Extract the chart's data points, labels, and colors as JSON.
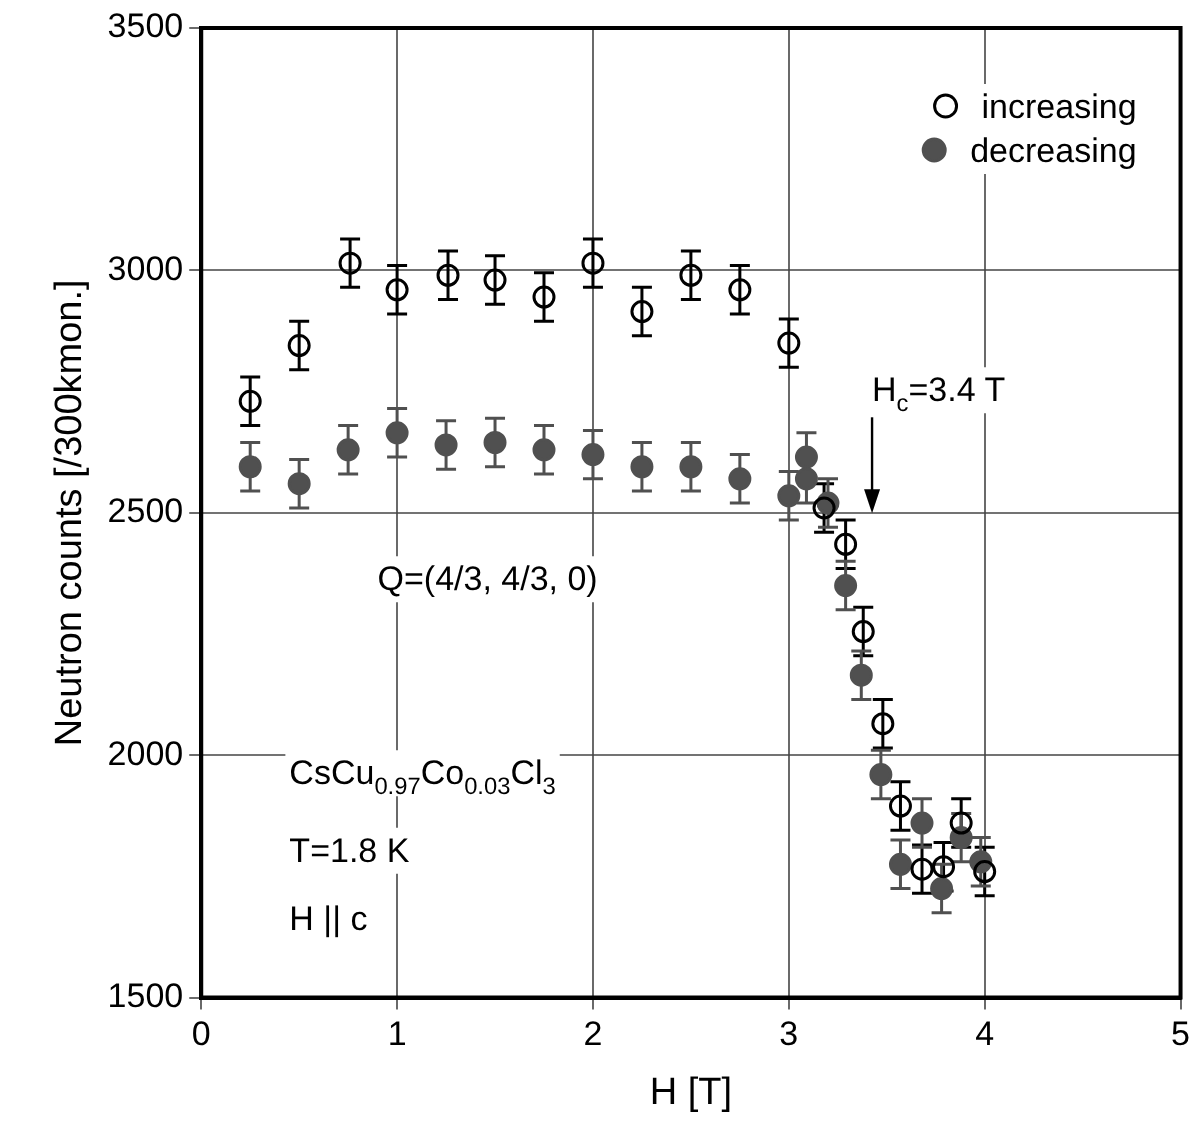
{
  "chart_data": {
    "type": "scatter",
    "xlabel": "H [T]",
    "ylabel": "Neutron counts [/300kmon.]",
    "xlim": [
      0,
      5
    ],
    "xticks": [
      0,
      1,
      2,
      3,
      4,
      5
    ],
    "ylim": [
      1500,
      3500
    ],
    "yticks": [
      1500,
      2000,
      2500,
      3000,
      3500
    ],
    "grid": true,
    "legend": "top right",
    "marker": "circle",
    "series": [
      {
        "name": "increasing",
        "color": "#000000",
        "x": [
          0.25,
          0.5,
          0.76,
          1.0,
          1.26,
          1.5,
          1.75,
          2.0,
          2.25,
          2.5,
          2.75,
          3.0,
          3.18,
          3.29,
          3.38,
          3.48,
          3.57,
          3.68,
          3.79,
          3.88,
          4.0
        ],
        "values": [
          2730,
          2845,
          3015,
          2960,
          2990,
          2980,
          2945,
          3015,
          2915,
          2990,
          2960,
          2850,
          2510,
          2435,
          2255,
          2065,
          1895,
          1765,
          1770,
          1860,
          1760
        ],
        "errors": [
          50,
          50,
          50,
          50,
          50,
          50,
          50,
          50,
          50,
          50,
          50,
          50,
          50,
          50,
          50,
          50,
          50,
          50,
          50,
          50,
          50
        ]
      },
      {
        "name": "decreasing",
        "color": "#505050",
        "x": [
          0.25,
          0.5,
          0.75,
          1.0,
          1.25,
          1.5,
          1.75,
          2.0,
          2.25,
          2.5,
          2.75,
          3.0,
          3.09,
          3.09,
          3.2,
          3.29,
          3.37,
          3.47,
          3.57,
          3.68,
          3.78,
          3.88,
          3.98
        ],
        "values": [
          2595,
          2560,
          2630,
          2665,
          2640,
          2645,
          2630,
          2620,
          2595,
          2595,
          2570,
          2535,
          2615,
          2570,
          2520,
          2350,
          2165,
          1960,
          1775,
          1860,
          1725,
          1830,
          1780
        ],
        "errors": [
          50,
          50,
          50,
          50,
          50,
          50,
          50,
          50,
          50,
          50,
          50,
          50,
          50,
          50,
          50,
          50,
          50,
          50,
          50,
          50,
          50,
          50,
          50
        ]
      }
    ],
    "annotations": [
      "H$_{c}$=3.4 T",
      "Q=(4/3, 4/3, 0)",
      "CsCu$_{0.97}$Co$_{0.03}$Cl$_{3}$",
      "T=1.8 K",
      "H || c"
    ]
  }
}
